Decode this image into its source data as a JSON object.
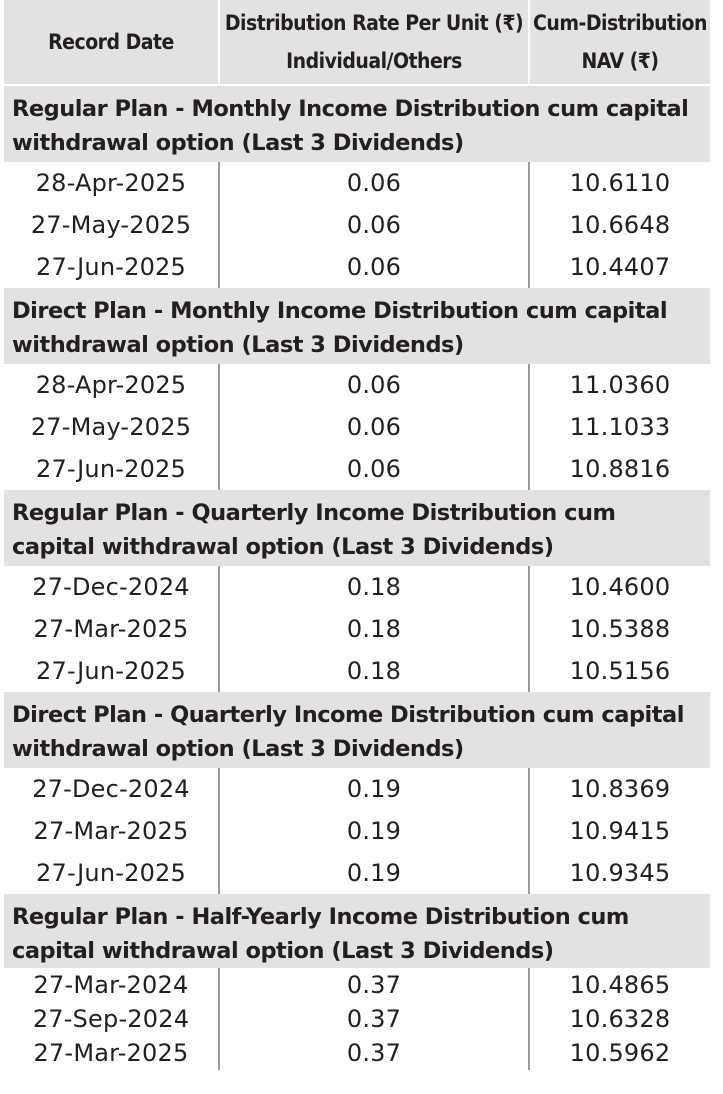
{
  "headers": {
    "record_date": "Record Date",
    "distribution_rate": "Distribution Rate Per Unit  (₹) Individual/Others",
    "cum_nav": "Cum-Distribution NAV (₹)"
  },
  "sections": [
    {
      "title": "Regular Plan - Monthly Income Distribution cum capital withdrawal option (Last 3 Dividends)",
      "rows": [
        {
          "date": "28-Apr-2025",
          "rate": "0.06",
          "nav": "10.6110"
        },
        {
          "date": "27-May-2025",
          "rate": "0.06",
          "nav": "10.6648"
        },
        {
          "date": "27-Jun-2025",
          "rate": "0.06",
          "nav": "10.4407"
        }
      ]
    },
    {
      "title": "Direct Plan - Monthly Income Distribution cum capital withdrawal option (Last 3 Dividends)",
      "rows": [
        {
          "date": "28-Apr-2025",
          "rate": "0.06",
          "nav": "11.0360"
        },
        {
          "date": "27-May-2025",
          "rate": "0.06",
          "nav": "11.1033"
        },
        {
          "date": "27-Jun-2025",
          "rate": "0.06",
          "nav": "10.8816"
        }
      ]
    },
    {
      "title": "Regular Plan - Quarterly Income Distribution cum capital withdrawal option (Last 3 Dividends)",
      "rows": [
        {
          "date": "27-Dec-2024",
          "rate": "0.18",
          "nav": "10.4600"
        },
        {
          "date": "27-Mar-2025",
          "rate": "0.18",
          "nav": "10.5388"
        },
        {
          "date": "27-Jun-2025",
          "rate": "0.18",
          "nav": "10.5156"
        }
      ]
    },
    {
      "title": "Direct Plan - Quarterly Income Distribution cum capital withdrawal option (Last 3 Dividends)",
      "rows": [
        {
          "date": "27-Dec-2024",
          "rate": "0.19",
          "nav": "10.8369"
        },
        {
          "date": "27-Mar-2025",
          "rate": "0.19",
          "nav": "10.9415"
        },
        {
          "date": "27-Jun-2025",
          "rate": "0.19",
          "nav": "10.9345"
        }
      ]
    },
    {
      "title": "Regular Plan - Half-Yearly Income Distribution cum capital withdrawal option (Last 3 Dividends)",
      "rows": [
        {
          "date": "27-Mar-2024",
          "rate": "0.37",
          "nav": "10.4865"
        },
        {
          "date": "27-Sep-2024",
          "rate": "0.37",
          "nav": "10.6328"
        },
        {
          "date": "27-Mar-2025",
          "rate": "0.37",
          "nav": "10.5962"
        }
      ]
    }
  ]
}
